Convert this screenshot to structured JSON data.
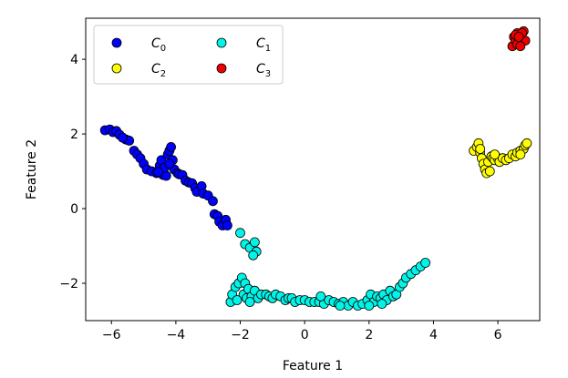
{
  "chart_data": {
    "type": "scatter",
    "title": "",
    "xlabel": "Feature 1",
    "ylabel": "Feature 2",
    "xlim": [
      -6.8,
      7.3
    ],
    "ylim": [
      -3.0,
      5.1
    ],
    "xticks": [
      -6,
      -4,
      -2,
      0,
      2,
      4,
      6
    ],
    "yticks": [
      -2,
      0,
      2,
      4
    ],
    "xtick_labels": [
      "−6",
      "−4",
      "−2",
      "0",
      "2",
      "4",
      "6"
    ],
    "ytick_labels": [
      "−2",
      "0",
      "2",
      "4"
    ],
    "grid": false,
    "legend": {
      "position": "top-left",
      "columns": 2
    },
    "marker_edge_color": "#000000",
    "series": [
      {
        "name": "C",
        "subscript": "0",
        "color": "#0000ff",
        "points": [
          [
            -6.2,
            2.1
          ],
          [
            -6.05,
            2.12
          ],
          [
            -5.95,
            2.05
          ],
          [
            -5.85,
            2.08
          ],
          [
            -5.75,
            1.98
          ],
          [
            -5.55,
            1.85
          ],
          [
            -5.45,
            1.82
          ],
          [
            -5.3,
            1.55
          ],
          [
            -5.2,
            1.45
          ],
          [
            -5.1,
            1.35
          ],
          [
            -5.0,
            1.2
          ],
          [
            -4.9,
            1.05
          ],
          [
            -4.75,
            1.0
          ],
          [
            -4.6,
            0.95
          ],
          [
            -4.5,
            1.15
          ],
          [
            -4.45,
            1.3
          ],
          [
            -4.4,
            0.9
          ],
          [
            -4.3,
            0.88
          ],
          [
            -4.25,
            1.45
          ],
          [
            -4.2,
            1.55
          ],
          [
            -4.15,
            1.65
          ],
          [
            -4.1,
            1.3
          ],
          [
            -4.05,
            1.05
          ],
          [
            -3.95,
            0.95
          ],
          [
            -3.9,
            0.92
          ],
          [
            -3.8,
            0.9
          ],
          [
            -3.7,
            0.75
          ],
          [
            -3.6,
            0.7
          ],
          [
            -3.5,
            0.68
          ],
          [
            -3.4,
            0.55
          ],
          [
            -3.35,
            0.45
          ],
          [
            -3.2,
            0.6
          ],
          [
            -3.15,
            0.4
          ],
          [
            -3.0,
            0.35
          ],
          [
            -2.85,
            0.2
          ],
          [
            -2.8,
            -0.15
          ],
          [
            -2.7,
            -0.2
          ],
          [
            -2.65,
            -0.35
          ],
          [
            -2.55,
            -0.45
          ],
          [
            -2.45,
            -0.3
          ],
          [
            -2.4,
            -0.45
          ],
          [
            -4.35,
            1.1
          ],
          [
            -4.55,
            0.98
          ],
          [
            -5.65,
            1.9
          ],
          [
            -4.2,
            1.2
          ]
        ]
      },
      {
        "name": "C",
        "subscript": "1",
        "color": "#00f5e8",
        "points": [
          [
            -2.0,
            -0.65
          ],
          [
            -1.85,
            -0.95
          ],
          [
            -1.7,
            -1.05
          ],
          [
            -1.55,
            -0.9
          ],
          [
            -1.5,
            -1.15
          ],
          [
            -1.6,
            -1.25
          ],
          [
            -2.3,
            -2.5
          ],
          [
            -2.25,
            -2.3
          ],
          [
            -2.15,
            -2.1
          ],
          [
            -2.05,
            -2.0
          ],
          [
            -1.95,
            -1.85
          ],
          [
            -1.9,
            -2.3
          ],
          [
            -1.85,
            -2.0
          ],
          [
            -1.8,
            -2.4
          ],
          [
            -1.75,
            -2.15
          ],
          [
            -1.65,
            -2.35
          ],
          [
            -1.55,
            -2.2
          ],
          [
            -1.45,
            -2.4
          ],
          [
            -1.35,
            -2.3
          ],
          [
            -1.2,
            -2.3
          ],
          [
            -1.1,
            -2.35
          ],
          [
            -1.0,
            -2.4
          ],
          [
            -0.9,
            -2.3
          ],
          [
            -0.75,
            -2.35
          ],
          [
            -0.6,
            -2.45
          ],
          [
            -0.5,
            -2.4
          ],
          [
            -0.4,
            -2.4
          ],
          [
            -0.3,
            -2.5
          ],
          [
            -0.15,
            -2.45
          ],
          [
            0.0,
            -2.45
          ],
          [
            0.15,
            -2.5
          ],
          [
            0.3,
            -2.5
          ],
          [
            0.45,
            -2.5
          ],
          [
            0.6,
            -2.55
          ],
          [
            0.75,
            -2.45
          ],
          [
            0.9,
            -2.5
          ],
          [
            1.05,
            -2.55
          ],
          [
            1.2,
            -2.5
          ],
          [
            1.35,
            -2.6
          ],
          [
            1.5,
            -2.5
          ],
          [
            1.65,
            -2.6
          ],
          [
            1.8,
            -2.55
          ],
          [
            1.95,
            -2.45
          ],
          [
            2.05,
            -2.3
          ],
          [
            2.15,
            -2.5
          ],
          [
            2.25,
            -2.35
          ],
          [
            2.35,
            -2.4
          ],
          [
            2.45,
            -2.3
          ],
          [
            2.55,
            -2.45
          ],
          [
            2.65,
            -2.2
          ],
          [
            2.75,
            -2.35
          ],
          [
            2.85,
            -2.3
          ],
          [
            2.95,
            -2.1
          ],
          [
            3.05,
            -2.0
          ],
          [
            3.15,
            -1.85
          ],
          [
            3.3,
            -1.75
          ],
          [
            3.45,
            -1.65
          ],
          [
            3.6,
            -1.55
          ],
          [
            3.75,
            -1.45
          ],
          [
            -2.1,
            -2.45
          ],
          [
            -1.7,
            -2.5
          ],
          [
            1.1,
            -2.6
          ],
          [
            2.0,
            -2.6
          ],
          [
            2.4,
            -2.55
          ],
          [
            0.5,
            -2.35
          ]
        ]
      },
      {
        "name": "C",
        "subscript": "2",
        "color": "#ffff00",
        "points": [
          [
            5.25,
            1.55
          ],
          [
            5.35,
            1.65
          ],
          [
            5.4,
            1.75
          ],
          [
            5.45,
            1.5
          ],
          [
            5.5,
            1.35
          ],
          [
            5.55,
            1.2
          ],
          [
            5.6,
            1.05
          ],
          [
            5.65,
            0.95
          ],
          [
            5.7,
            1.25
          ],
          [
            5.75,
            1.0
          ],
          [
            5.8,
            1.4
          ],
          [
            5.85,
            1.35
          ],
          [
            5.9,
            1.3
          ],
          [
            6.0,
            1.35
          ],
          [
            6.05,
            1.25
          ],
          [
            6.15,
            1.35
          ],
          [
            6.25,
            1.3
          ],
          [
            6.35,
            1.35
          ],
          [
            6.45,
            1.45
          ],
          [
            6.55,
            1.4
          ],
          [
            6.6,
            1.5
          ],
          [
            6.7,
            1.55
          ],
          [
            6.8,
            1.6
          ],
          [
            6.85,
            1.7
          ],
          [
            6.9,
            1.75
          ],
          [
            5.45,
            1.6
          ],
          [
            5.9,
            1.45
          ],
          [
            6.7,
            1.45
          ]
        ]
      },
      {
        "name": "C",
        "subscript": "3",
        "color": "#ee0000",
        "points": [
          [
            6.45,
            4.35
          ],
          [
            6.5,
            4.6
          ],
          [
            6.55,
            4.5
          ],
          [
            6.6,
            4.7
          ],
          [
            6.65,
            4.45
          ],
          [
            6.7,
            4.65
          ],
          [
            6.75,
            4.55
          ],
          [
            6.8,
            4.75
          ],
          [
            6.85,
            4.5
          ],
          [
            6.6,
            4.4
          ],
          [
            6.7,
            4.35
          ],
          [
            6.55,
            4.65
          ],
          [
            6.75,
            4.7
          ],
          [
            6.65,
            4.6
          ]
        ]
      }
    ]
  }
}
